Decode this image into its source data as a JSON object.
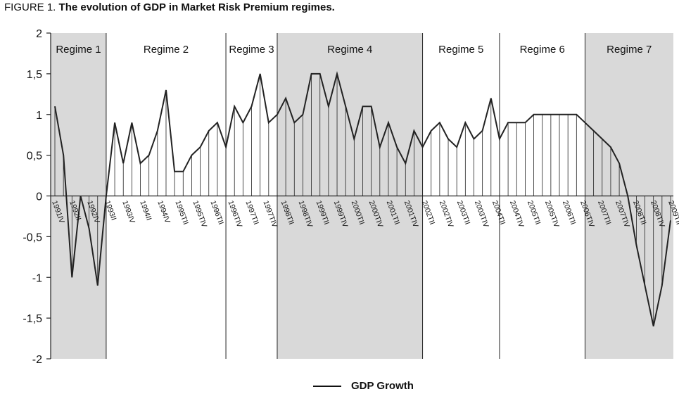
{
  "figure": {
    "label": "FIGURE 1.",
    "title": "The evolution of GDP in Market Risk Premium regimes."
  },
  "chart_data": {
    "type": "line",
    "title": "The evolution of GDP in Market Risk Premium regimes.",
    "xlabel": "",
    "ylabel": "",
    "ylim": [
      -2,
      2
    ],
    "yticks": [
      2,
      1.5,
      1,
      0.5,
      0,
      -0.5,
      -1,
      -1.5,
      -2
    ],
    "ytick_labels": [
      "2",
      "1,5",
      "1",
      "0,5",
      "0",
      "-0,5",
      "-1",
      "-1,5",
      "-2"
    ],
    "legend_position": "bottom-center",
    "grid": false,
    "colors": {
      "line": "#222222",
      "shade": "#d9d9d9",
      "axis": "#222222"
    },
    "x_tick_labels": [
      "1991IV",
      "1992II",
      "1992IV",
      "1993II",
      "1993IV",
      "1994II",
      "1994IV",
      "1995TII",
      "1995TIV",
      "1996TII",
      "1996TIV",
      "1997TII",
      "1997TIV",
      "1998TII",
      "1998TIV",
      "1999TII",
      "1999TIV",
      "2000TII",
      "2000TIV",
      "2001TII",
      "2001TIV",
      "2002TII",
      "2002TIV",
      "2003TII",
      "2003TIV",
      "2004TII",
      "2004TIV",
      "2005TII",
      "2005TIV",
      "2006TII",
      "2006TIV",
      "2007TII",
      "2007TIV",
      "2008TII",
      "2008TIV",
      "2009TII"
    ],
    "series": [
      {
        "name": "GDP Growth",
        "values": [
          1.1,
          0.5,
          -1.0,
          0.0,
          -0.4,
          -1.1,
          0.0,
          0.9,
          0.4,
          0.9,
          0.4,
          0.5,
          0.8,
          1.3,
          0.3,
          0.3,
          0.5,
          0.6,
          0.8,
          0.9,
          0.6,
          1.1,
          0.9,
          1.1,
          1.5,
          0.9,
          1.0,
          1.2,
          0.9,
          1.0,
          1.5,
          1.5,
          1.1,
          1.5,
          1.1,
          0.7,
          1.1,
          1.1,
          0.6,
          0.9,
          0.6,
          0.4,
          0.8,
          0.6,
          0.8,
          0.9,
          0.7,
          0.6,
          0.9,
          0.7,
          0.8,
          1.2,
          0.7,
          0.9,
          0.9,
          0.9,
          1.0,
          1.0,
          1.0,
          1.0,
          1.0,
          1.0,
          0.9,
          0.8,
          0.7,
          0.6,
          0.4,
          0.0,
          -0.6,
          -1.1,
          -1.6,
          -1.1,
          -0.3
        ]
      }
    ],
    "regimes": [
      {
        "label": "Regime 1",
        "start": 0,
        "end": 6,
        "shaded": true
      },
      {
        "label": "Regime 2",
        "start": 6,
        "end": 20,
        "shaded": false
      },
      {
        "label": "Regime 3",
        "start": 20,
        "end": 26,
        "shaded": false
      },
      {
        "label": "Regime 4",
        "start": 26,
        "end": 43,
        "shaded": true
      },
      {
        "label": "Regime 5",
        "start": 43,
        "end": 52,
        "shaded": false
      },
      {
        "label": "Regime 6",
        "start": 52,
        "end": 62,
        "shaded": false
      },
      {
        "label": "Regime 7",
        "start": 62,
        "end": 72,
        "shaded": true
      }
    ]
  }
}
